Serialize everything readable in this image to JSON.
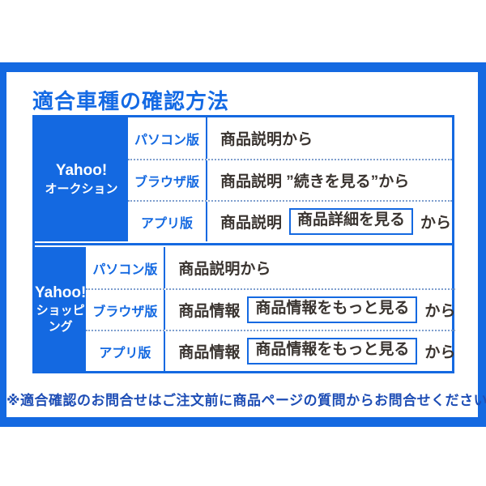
{
  "page": {
    "title": "適合車種の確認方法",
    "footer_note": "※適合確認のお問合せはご注文前に商品ページの質問からお問合せください。"
  },
  "colors": {
    "primary_blue": "#1469E1",
    "dotted_separator": "#7F9FCE",
    "body_text": "#3A3430",
    "footer_text": "#1D4DB5",
    "background": "#FFFFFF"
  },
  "table": {
    "sections": [
      {
        "service_line1": "Yahoo!",
        "service_line2": "オークション",
        "rows": [
          {
            "platform": "パソコン版",
            "pre": "商品説明から",
            "boxed": "",
            "post": ""
          },
          {
            "platform": "ブラウザ版",
            "pre": "商品説明 ”続きを見る”から",
            "boxed": "",
            "post": ""
          },
          {
            "platform": "アプリ版",
            "pre": "商品説明",
            "boxed": "商品詳細を見る",
            "post": "から"
          }
        ]
      },
      {
        "service_line1": "Yahoo!",
        "service_line2": "ショッピング",
        "rows": [
          {
            "platform": "パソコン版",
            "pre": "商品説明から",
            "boxed": "",
            "post": ""
          },
          {
            "platform": "ブラウザ版",
            "pre": "商品情報",
            "boxed": "商品情報をもっと見る",
            "post": "から"
          },
          {
            "platform": "アプリ版",
            "pre": "商品情報",
            "boxed": "商品情報をもっと見る",
            "post": "から"
          }
        ]
      }
    ]
  }
}
